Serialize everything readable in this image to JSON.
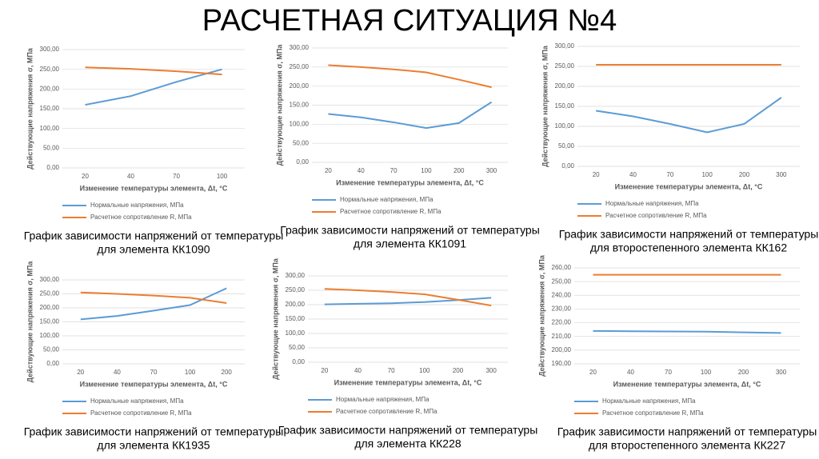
{
  "title": "РАСЧЕТНАЯ СИТУАЦИЯ №4",
  "chart_data": [
    {
      "type": "line",
      "categories": [
        "20",
        "40",
        "70",
        "100"
      ],
      "ylabel": "Действующие напряжения σ, МПа",
      "xlabel": "Изменение температуры элемента, Δt, °С",
      "ylim": [
        0,
        300
      ],
      "yticks": [
        {
          "value": 0,
          "label": "0,00"
        },
        {
          "value": 50,
          "label": "50,00"
        },
        {
          "value": 100,
          "label": "100,00"
        },
        {
          "value": 150,
          "label": "150,00"
        },
        {
          "value": 200,
          "label": "200,00"
        },
        {
          "value": 250,
          "label": "250,00"
        },
        {
          "value": 300,
          "label": "300,00"
        }
      ],
      "series": [
        {
          "name": "Нормальные напряжения, МПа",
          "color": "#5b9bd5",
          "values": [
            160,
            182,
            218,
            250
          ]
        },
        {
          "name": "Расчетное сопротивление R, МПа",
          "color": "#ed7d31",
          "values": [
            255,
            251,
            245,
            237
          ]
        }
      ],
      "caption": [
        "График зависимости напряжений от температуры",
        "для элемента КК1090"
      ]
    },
    {
      "type": "line",
      "categories": [
        "20",
        "40",
        "70",
        "100",
        "200",
        "300"
      ],
      "ylabel": "Действующие напряжения σ, МПа",
      "xlabel": "Изменение температуры элемента, Δt, °С",
      "ylim": [
        0,
        300
      ],
      "yticks": [
        {
          "value": 0,
          "label": "0,00"
        },
        {
          "value": 50,
          "label": "50,00"
        },
        {
          "value": 100,
          "label": "100,00"
        },
        {
          "value": 150,
          "label": "150,00"
        },
        {
          "value": 200,
          "label": "200,00"
        },
        {
          "value": 250,
          "label": "250,00"
        },
        {
          "value": 300,
          "label": "300,00"
        }
      ],
      "series": [
        {
          "name": "Нормальные напряжения, МПа",
          "color": "#5b9bd5",
          "values": [
            127,
            118,
            105,
            90,
            103,
            158
          ]
        },
        {
          "name": "Расчетное сопротивление R, МПа",
          "color": "#ed7d31",
          "values": [
            255,
            250,
            244,
            236,
            217,
            197
          ]
        }
      ],
      "caption": [
        "График зависимости напряжений от температуры",
        "для элемента КК1091"
      ]
    },
    {
      "type": "line",
      "categories": [
        "20",
        "40",
        "70",
        "100",
        "200",
        "300"
      ],
      "ylabel": "Действующие напряжения σ, МПа",
      "xlabel": "Изменение температуры элемента, Δt, °С",
      "ylim": [
        0,
        300
      ],
      "yticks": [
        {
          "value": 0,
          "label": "0,00"
        },
        {
          "value": 50,
          "label": "50,00"
        },
        {
          "value": 100,
          "label": "100,00"
        },
        {
          "value": 150,
          "label": "150,00"
        },
        {
          "value": 200,
          "label": "200,00"
        },
        {
          "value": 250,
          "label": "250,00"
        },
        {
          "value": 300,
          "label": "300,00"
        }
      ],
      "series": [
        {
          "name": "Нормальные напряжения, МПа",
          "color": "#5b9bd5",
          "values": [
            139,
            125,
            106,
            85,
            106,
            172
          ]
        },
        {
          "name": "Расчетное сопротивление R, МПа",
          "color": "#ed7d31",
          "values": [
            254,
            254,
            254,
            254,
            254,
            254
          ]
        }
      ],
      "caption": [
        "График зависимости напряжений от температуры",
        "для второстепенного элемента КК162"
      ]
    },
    {
      "type": "line",
      "categories": [
        "20",
        "40",
        "70",
        "100",
        "200"
      ],
      "ylabel": "Действующие напряжения σ, МПа",
      "xlabel": "Изменение температуры элемента, Δt, °С",
      "ylim": [
        0,
        300
      ],
      "yticks": [
        {
          "value": 0,
          "label": "0,00"
        },
        {
          "value": 50,
          "label": "50,00"
        },
        {
          "value": 100,
          "label": "100,00"
        },
        {
          "value": 150,
          "label": "150,00"
        },
        {
          "value": 200,
          "label": "200,00"
        },
        {
          "value": 250,
          "label": "250,00"
        },
        {
          "value": 300,
          "label": "300,00"
        }
      ],
      "series": [
        {
          "name": "Нормальные напряжения, МПа",
          "color": "#5b9bd5",
          "values": [
            159,
            171,
            190,
            210,
            270
          ]
        },
        {
          "name": "Расчетное сопротивление R, МПа",
          "color": "#ed7d31",
          "values": [
            255,
            250,
            244,
            236,
            217
          ]
        }
      ],
      "caption": [
        "График зависимости напряжений от температуры",
        "для элемента КК1935"
      ]
    },
    {
      "type": "line",
      "categories": [
        "20",
        "40",
        "70",
        "100",
        "200",
        "300"
      ],
      "ylabel": "Действующие напряжения σ, МПа",
      "xlabel": "Изменение температуры элемента, Δt, °С",
      "ylim": [
        0,
        300
      ],
      "yticks": [
        {
          "value": 0,
          "label": "0,00"
        },
        {
          "value": 50,
          "label": "50,00"
        },
        {
          "value": 100,
          "label": "100,00"
        },
        {
          "value": 150,
          "label": "150,00"
        },
        {
          "value": 200,
          "label": "200,00"
        },
        {
          "value": 250,
          "label": "250,00"
        },
        {
          "value": 300,
          "label": "300,00"
        }
      ],
      "series": [
        {
          "name": "Нормальные напряжения, МПа",
          "color": "#5b9bd5",
          "values": [
            201,
            203,
            205,
            209,
            216,
            224
          ]
        },
        {
          "name": "Расчетное сопротивление R, МПа",
          "color": "#ed7d31",
          "values": [
            255,
            250,
            244,
            236,
            217,
            197
          ]
        }
      ],
      "caption": [
        "График зависимости напряжений от температуры",
        "для элемента КК228"
      ]
    },
    {
      "type": "line",
      "categories": [
        "20",
        "40",
        "70",
        "100",
        "200",
        "300"
      ],
      "ylabel": "Действующие напряжения σ, МПа",
      "xlabel": "Изменение температуры элемента, Δt, °С",
      "ylim": [
        190,
        260
      ],
      "yticks": [
        {
          "value": 190,
          "label": "190,00"
        },
        {
          "value": 200,
          "label": "200,00"
        },
        {
          "value": 210,
          "label": "210,00"
        },
        {
          "value": 220,
          "label": "220,00"
        },
        {
          "value": 230,
          "label": "230,00"
        },
        {
          "value": 240,
          "label": "240,00"
        },
        {
          "value": 250,
          "label": "250,00"
        },
        {
          "value": 260,
          "label": "260,00"
        }
      ],
      "series": [
        {
          "name": "Нормальные напряжения, МПа",
          "color": "#5b9bd5",
          "values": [
            214,
            213.8,
            213.6,
            213.5,
            213,
            212.5
          ]
        },
        {
          "name": "Расчетное сопротивление R, МПа",
          "color": "#ed7d31",
          "values": [
            255,
            255,
            255,
            255,
            255,
            255
          ]
        }
      ],
      "caption": [
        "График зависимости напряжений от температуры",
        "для второстепенного элемента КК227"
      ]
    }
  ]
}
